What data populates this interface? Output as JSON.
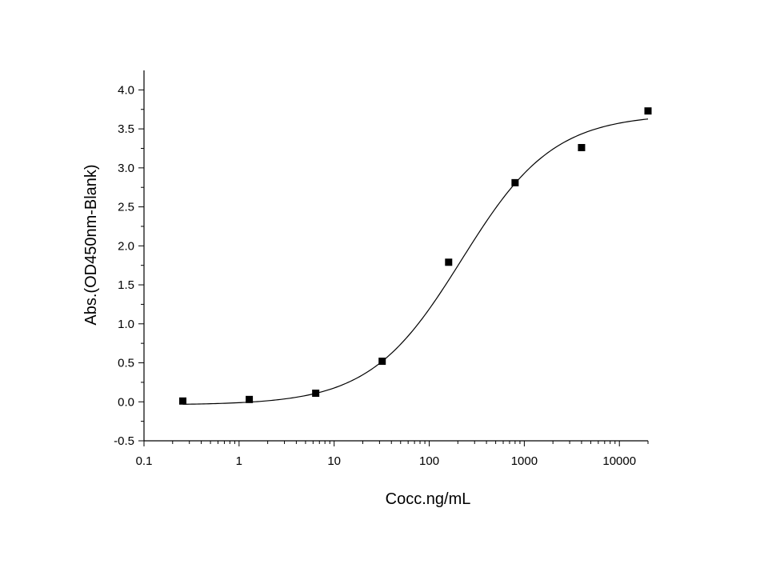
{
  "chart_data": {
    "type": "scatter",
    "xlabel": "Cocc.ng/mL",
    "ylabel": "Abs.(OD450nm-Blank)",
    "x_scale": "log",
    "xlim": [
      0.1,
      20000
    ],
    "ylim": [
      -0.5,
      4.25
    ],
    "x_ticks": [
      0.1,
      1,
      10,
      100,
      1000,
      10000
    ],
    "x_tick_labels": [
      "0.1",
      "1",
      "10",
      "100",
      "1000",
      "10000"
    ],
    "y_ticks": [
      -0.5,
      0.0,
      0.5,
      1.0,
      1.5,
      2.0,
      2.5,
      3.0,
      3.5,
      4.0
    ],
    "y_tick_labels": [
      "-0.5",
      "0.0",
      "0.5",
      "1.0",
      "1.5",
      "2.0",
      "2.5",
      "3.0",
      "3.5",
      "4.0"
    ],
    "grid": false,
    "legend": "none",
    "series": [
      {
        "marker": "square",
        "color": "#000000",
        "x": [
          0.256,
          1.28,
          6.4,
          32,
          160,
          800,
          4000,
          20000
        ],
        "y": [
          0.01,
          0.03,
          0.11,
          0.52,
          1.79,
          2.81,
          3.26,
          3.73
        ]
      }
    ],
    "fit": {
      "type": "4PL",
      "color": "#000000",
      "bottom": -0.04,
      "top": 3.69,
      "ec50": 220,
      "hill": 0.9,
      "x_range": [
        0.256,
        20000
      ]
    }
  }
}
